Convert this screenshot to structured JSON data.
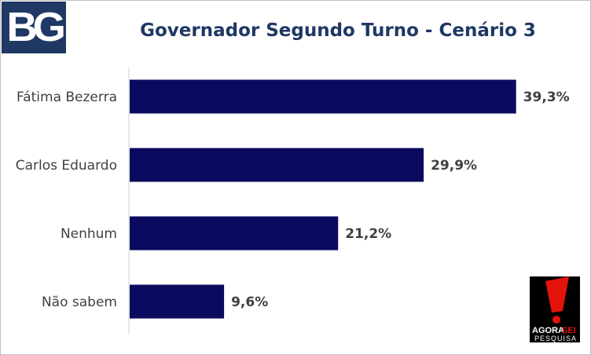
{
  "logo": {
    "text": "BG",
    "bg_color": "#1f3864"
  },
  "chart_data": {
    "type": "bar",
    "orientation": "horizontal",
    "title": "Governador Segundo Turno - Cenário 3",
    "categories": [
      "Fátima Bezerra",
      "Carlos Eduardo",
      "Nenhum",
      "Não sabem"
    ],
    "values": [
      39.3,
      29.9,
      21.2,
      9.6
    ],
    "value_labels": [
      "39,3%",
      "29,9%",
      "21,2%",
      "9,6%"
    ],
    "xlim": [
      0,
      45
    ],
    "grid": false,
    "bar_color": "#0a0a5e"
  },
  "source_logo": {
    "line1_a": "AGORA",
    "line1_b": "SEI",
    "line2": "PESQUISA",
    "accent_color": "#e3120b"
  }
}
